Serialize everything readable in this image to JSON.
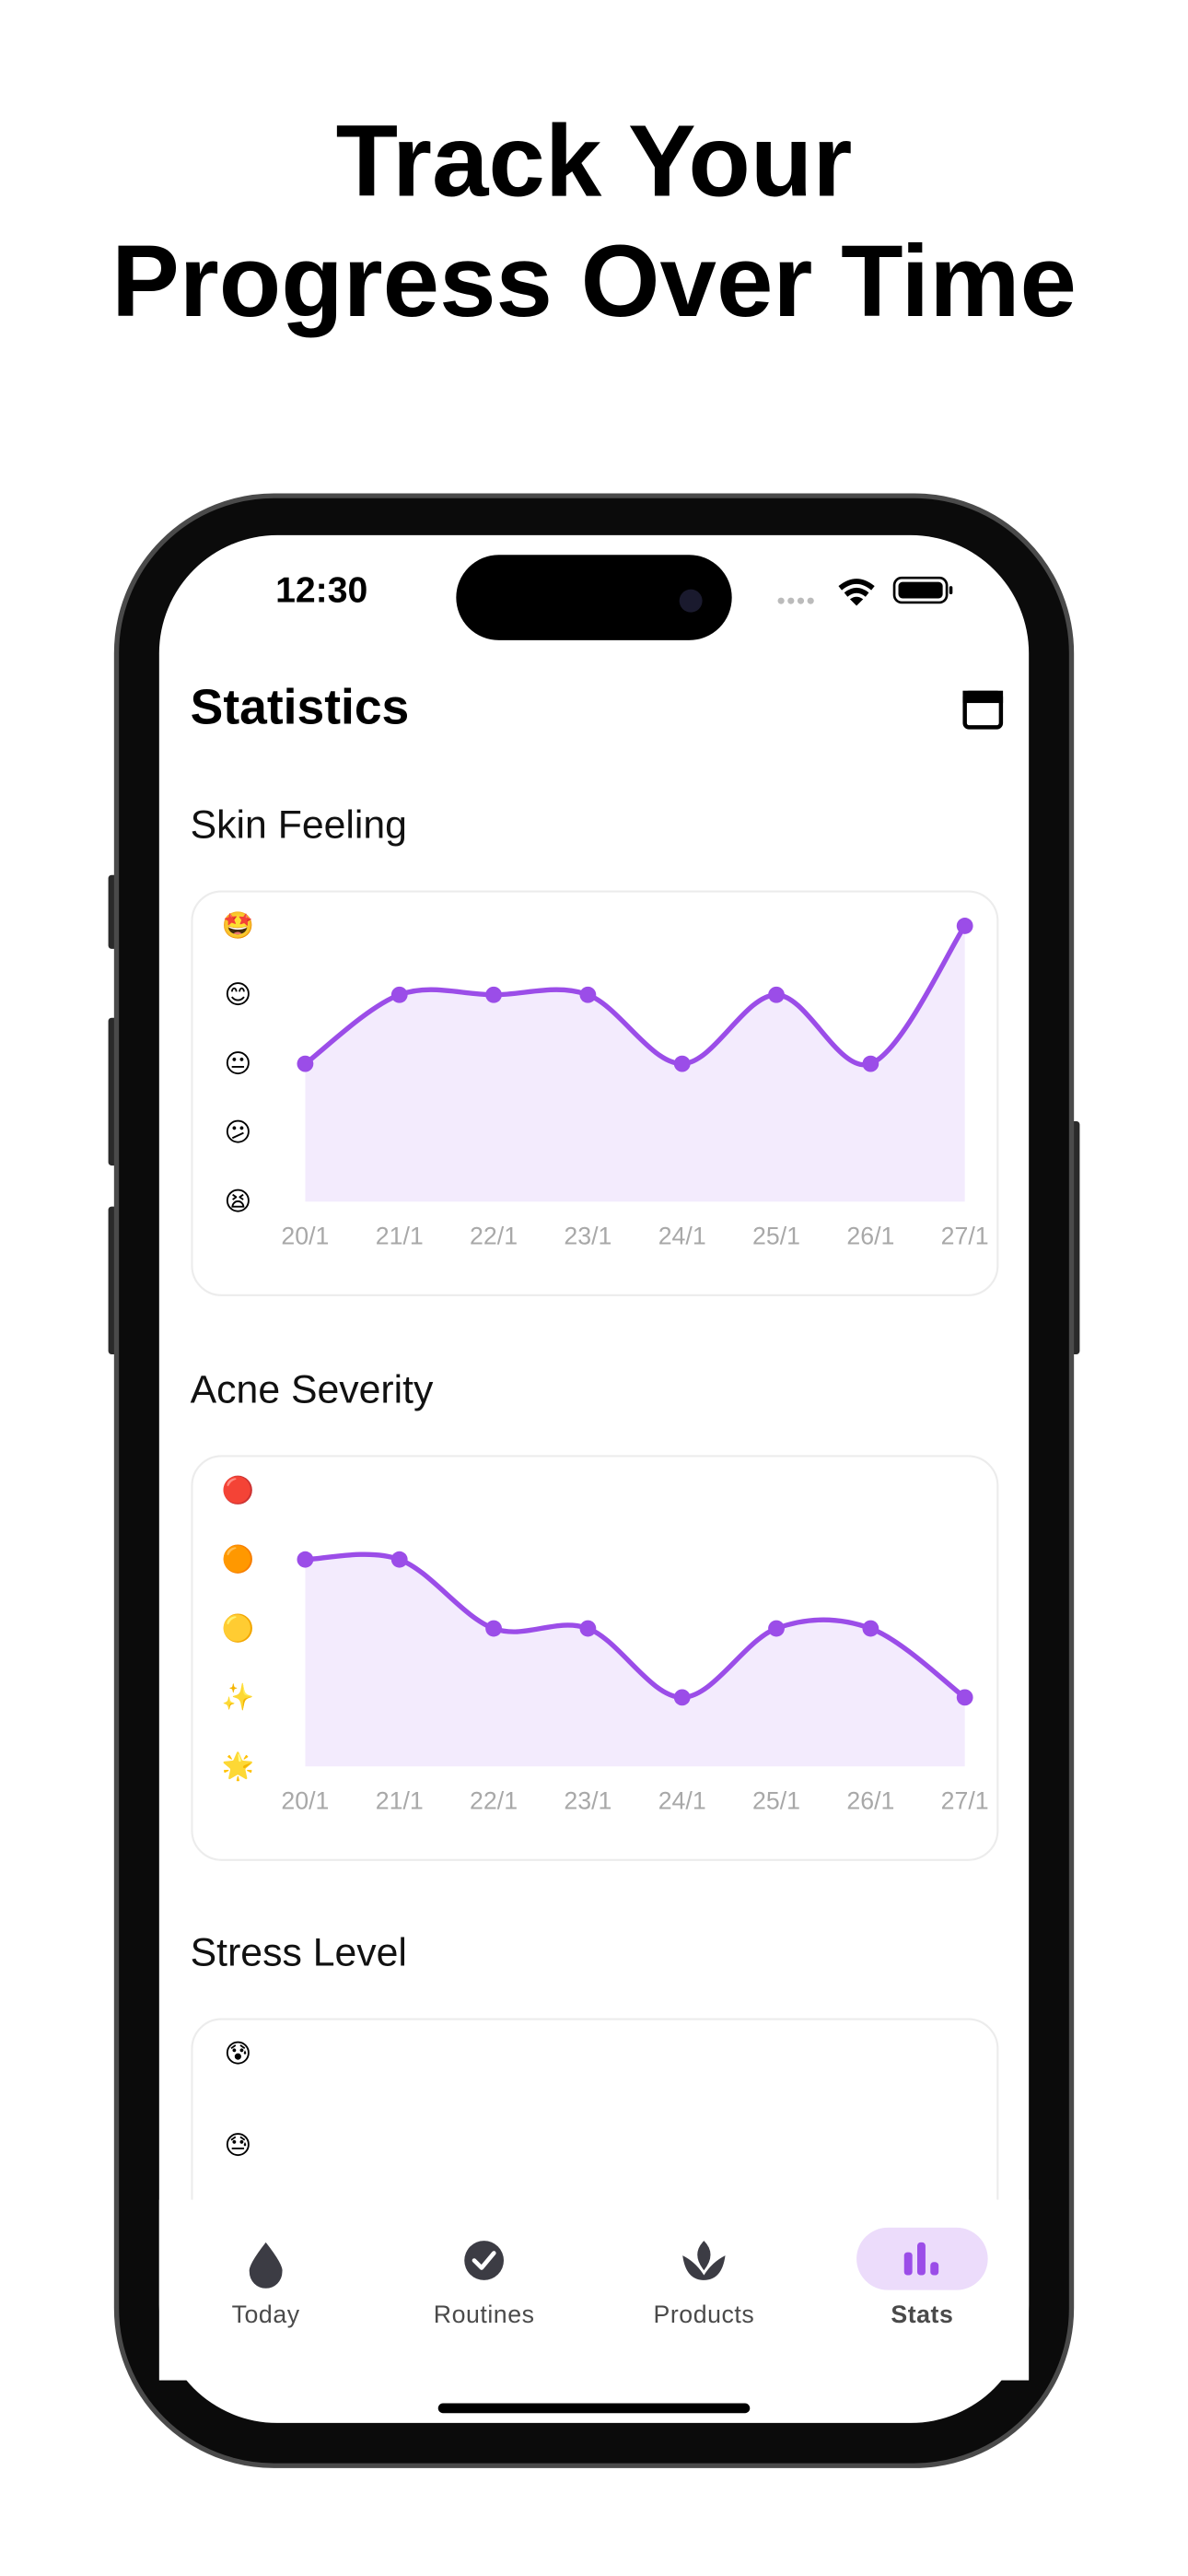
{
  "headline": [
    "Track Your",
    "Progress Over Time"
  ],
  "status": {
    "time": "12:30"
  },
  "screen": {
    "title": "Statistics"
  },
  "chart_data": [
    {
      "type": "line",
      "title": "Skin Feeling",
      "color": "#9b4de8",
      "area": true,
      "categories": [
        "20/1",
        "21/1",
        "22/1",
        "23/1",
        "24/1",
        "25/1",
        "26/1",
        "27/1"
      ],
      "values": [
        3,
        4,
        4,
        4,
        3,
        4,
        3,
        5
      ],
      "ylim": [
        1,
        5
      ],
      "yticks": [
        {
          "value": 1,
          "label": "😫"
        },
        {
          "value": 2,
          "label": "😕"
        },
        {
          "value": 3,
          "label": "😐"
        },
        {
          "value": 4,
          "label": "😊"
        },
        {
          "value": 5,
          "label": "🤩"
        }
      ]
    },
    {
      "type": "line",
      "title": "Acne Severity",
      "color": "#9b4de8",
      "area": true,
      "categories": [
        "20/1",
        "21/1",
        "22/1",
        "23/1",
        "24/1",
        "25/1",
        "26/1",
        "27/1"
      ],
      "values": [
        4,
        4,
        3,
        3,
        2,
        3,
        3,
        2
      ],
      "ylim": [
        1,
        5
      ],
      "yticks": [
        {
          "value": 1,
          "label": "🌟"
        },
        {
          "value": 2,
          "label": "✨"
        },
        {
          "value": 3,
          "label": "🟡"
        },
        {
          "value": 4,
          "label": "🟠"
        },
        {
          "value": 5,
          "label": "🔴"
        }
      ]
    },
    {
      "type": "line",
      "title": "Stress Level",
      "color": "#9b4de8",
      "ylim": [
        1,
        5
      ],
      "yticks": [
        {
          "value": 4,
          "label": "😓"
        },
        {
          "value": 5,
          "label": "😰"
        }
      ]
    }
  ],
  "nav": {
    "items": [
      "Today",
      "Routines",
      "Products",
      "Stats"
    ],
    "active": 3
  }
}
